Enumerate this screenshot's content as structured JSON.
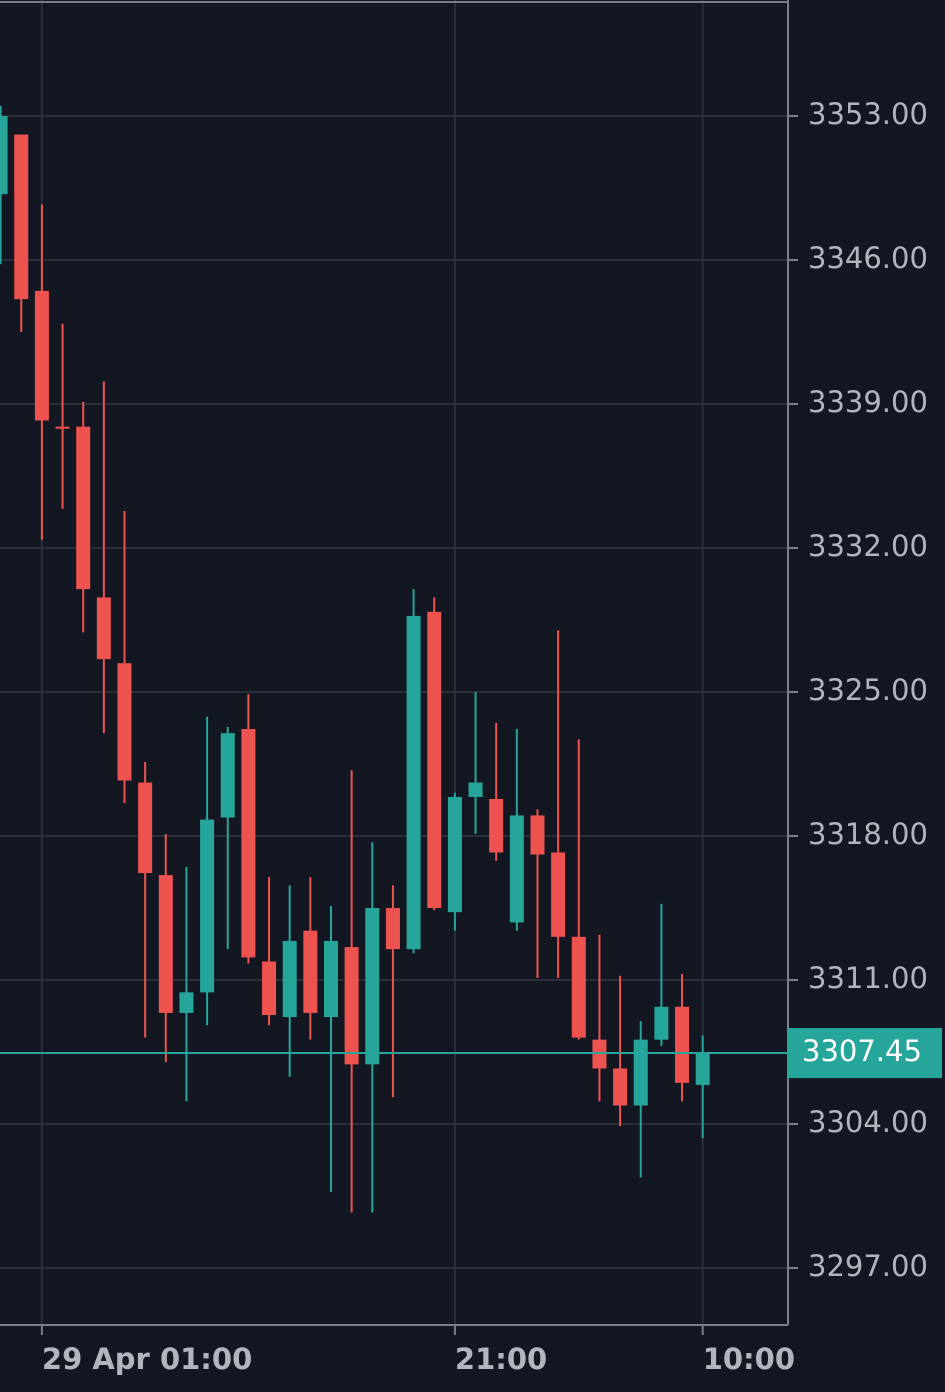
{
  "chart_data": {
    "type": "candlestick",
    "categories": [
      null,
      null,
      "29 Apr 01:00",
      null,
      null,
      null,
      null,
      null,
      null,
      null,
      null,
      null,
      null,
      null,
      null,
      null,
      null,
      null,
      null,
      null,
      null,
      null,
      "21:00",
      null,
      null,
      null,
      null,
      null,
      null,
      null,
      null,
      null,
      null,
      null,
      "10:00"
    ],
    "open": [
      3349.2,
      3352.1,
      3344.5,
      3337.9,
      3337.9,
      3329.6,
      3326.4,
      3320.6,
      3316.1,
      3309.4,
      3310.4,
      3318.9,
      3323.2,
      3311.9,
      3309.2,
      3313.4,
      3309.2,
      3312.6,
      3306.9,
      3314.5,
      3312.5,
      3328.9,
      3314.3,
      3319.9,
      3319.8,
      3313.8,
      3319.0,
      3317.2,
      3313.1,
      3308.1,
      3306.7,
      3304.9,
      3308.1,
      3309.7,
      3305.9
    ],
    "high": [
      3353.5,
      3352.1,
      3348.7,
      3342.9,
      3339.1,
      3340.1,
      3333.8,
      3321.6,
      3318.1,
      3316.5,
      3323.8,
      3323.3,
      3324.9,
      3316.0,
      3315.6,
      3316.0,
      3314.6,
      3321.2,
      3317.7,
      3315.6,
      3330.0,
      3329.6,
      3320.1,
      3325.0,
      3323.5,
      3323.2,
      3319.3,
      3328.0,
      3322.7,
      3313.2,
      3311.2,
      3309.0,
      3314.7,
      3311.3,
      3308.3
    ],
    "low": [
      3345.8,
      3342.5,
      3332.4,
      3333.9,
      3327.9,
      3323.0,
      3319.6,
      3308.2,
      3307.0,
      3305.1,
      3308.8,
      3312.5,
      3311.8,
      3308.8,
      3306.3,
      3308.1,
      3300.7,
      3299.7,
      3299.7,
      3305.3,
      3312.3,
      3314.4,
      3313.4,
      3318.1,
      3316.8,
      3313.4,
      3311.1,
      3311.1,
      3308.1,
      3305.1,
      3303.9,
      3301.4,
      3307.8,
      3305.1,
      3303.3
    ],
    "close": [
      3353.0,
      3344.1,
      3338.2,
      3337.8,
      3330.0,
      3326.6,
      3320.7,
      3316.2,
      3309.4,
      3310.4,
      3318.8,
      3323.0,
      3312.1,
      3309.3,
      3312.9,
      3309.4,
      3312.9,
      3306.9,
      3314.5,
      3312.5,
      3328.7,
      3314.5,
      3319.9,
      3320.6,
      3317.2,
      3319.0,
      3317.1,
      3313.1,
      3308.2,
      3306.7,
      3304.9,
      3308.1,
      3309.7,
      3306.0,
      3307.45
    ],
    "up_color": "#26a69a",
    "down_color": "#ef5350",
    "ylim": [
      3294.23,
      3358.64
    ],
    "yticks": [
      {
        "value": 3297,
        "label": "3297.00"
      },
      {
        "value": 3304,
        "label": "3304.00"
      },
      {
        "value": 3311,
        "label": "3311.00"
      },
      {
        "value": 3318,
        "label": "3318.00"
      },
      {
        "value": 3325,
        "label": "3325.00"
      },
      {
        "value": 3332,
        "label": "3332.00"
      },
      {
        "value": 3339,
        "label": "3339.00"
      },
      {
        "value": 3346,
        "label": "3346.00"
      },
      {
        "value": 3353,
        "label": "3353.00"
      }
    ],
    "last_price": 3307.45,
    "grid": true
  }
}
